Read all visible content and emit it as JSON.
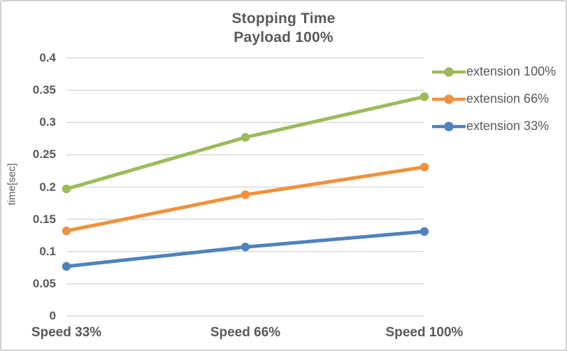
{
  "colors": {
    "text": "#595959",
    "grid": "#d9d9d9",
    "background": "#ffffff",
    "border": "#d2d2d2"
  },
  "chart_data": {
    "type": "line",
    "title": "Stopping Time",
    "subtitle": "Payload 100%",
    "xlabel": "",
    "ylabel": "time[sec]",
    "categories": [
      "Speed 33%",
      "Speed 66%",
      "Speed 100%"
    ],
    "series": [
      {
        "name": "extension 100%",
        "color": "#9bbb59",
        "values": [
          0.197,
          0.277,
          0.34
        ]
      },
      {
        "name": "extension 66%",
        "color": "#f0913d",
        "values": [
          0.132,
          0.188,
          0.231
        ]
      },
      {
        "name": "extension 33%",
        "color": "#4f81bd",
        "values": [
          0.077,
          0.107,
          0.131
        ]
      }
    ],
    "ylim": [
      0,
      0.4
    ],
    "ytick_step": 0.05,
    "yticks": [
      "0",
      "0.05",
      "0.1",
      "0.15",
      "0.2",
      "0.25",
      "0.3",
      "0.35",
      "0.4"
    ],
    "grid": true,
    "legend_position": "right",
    "marker": "circle"
  }
}
